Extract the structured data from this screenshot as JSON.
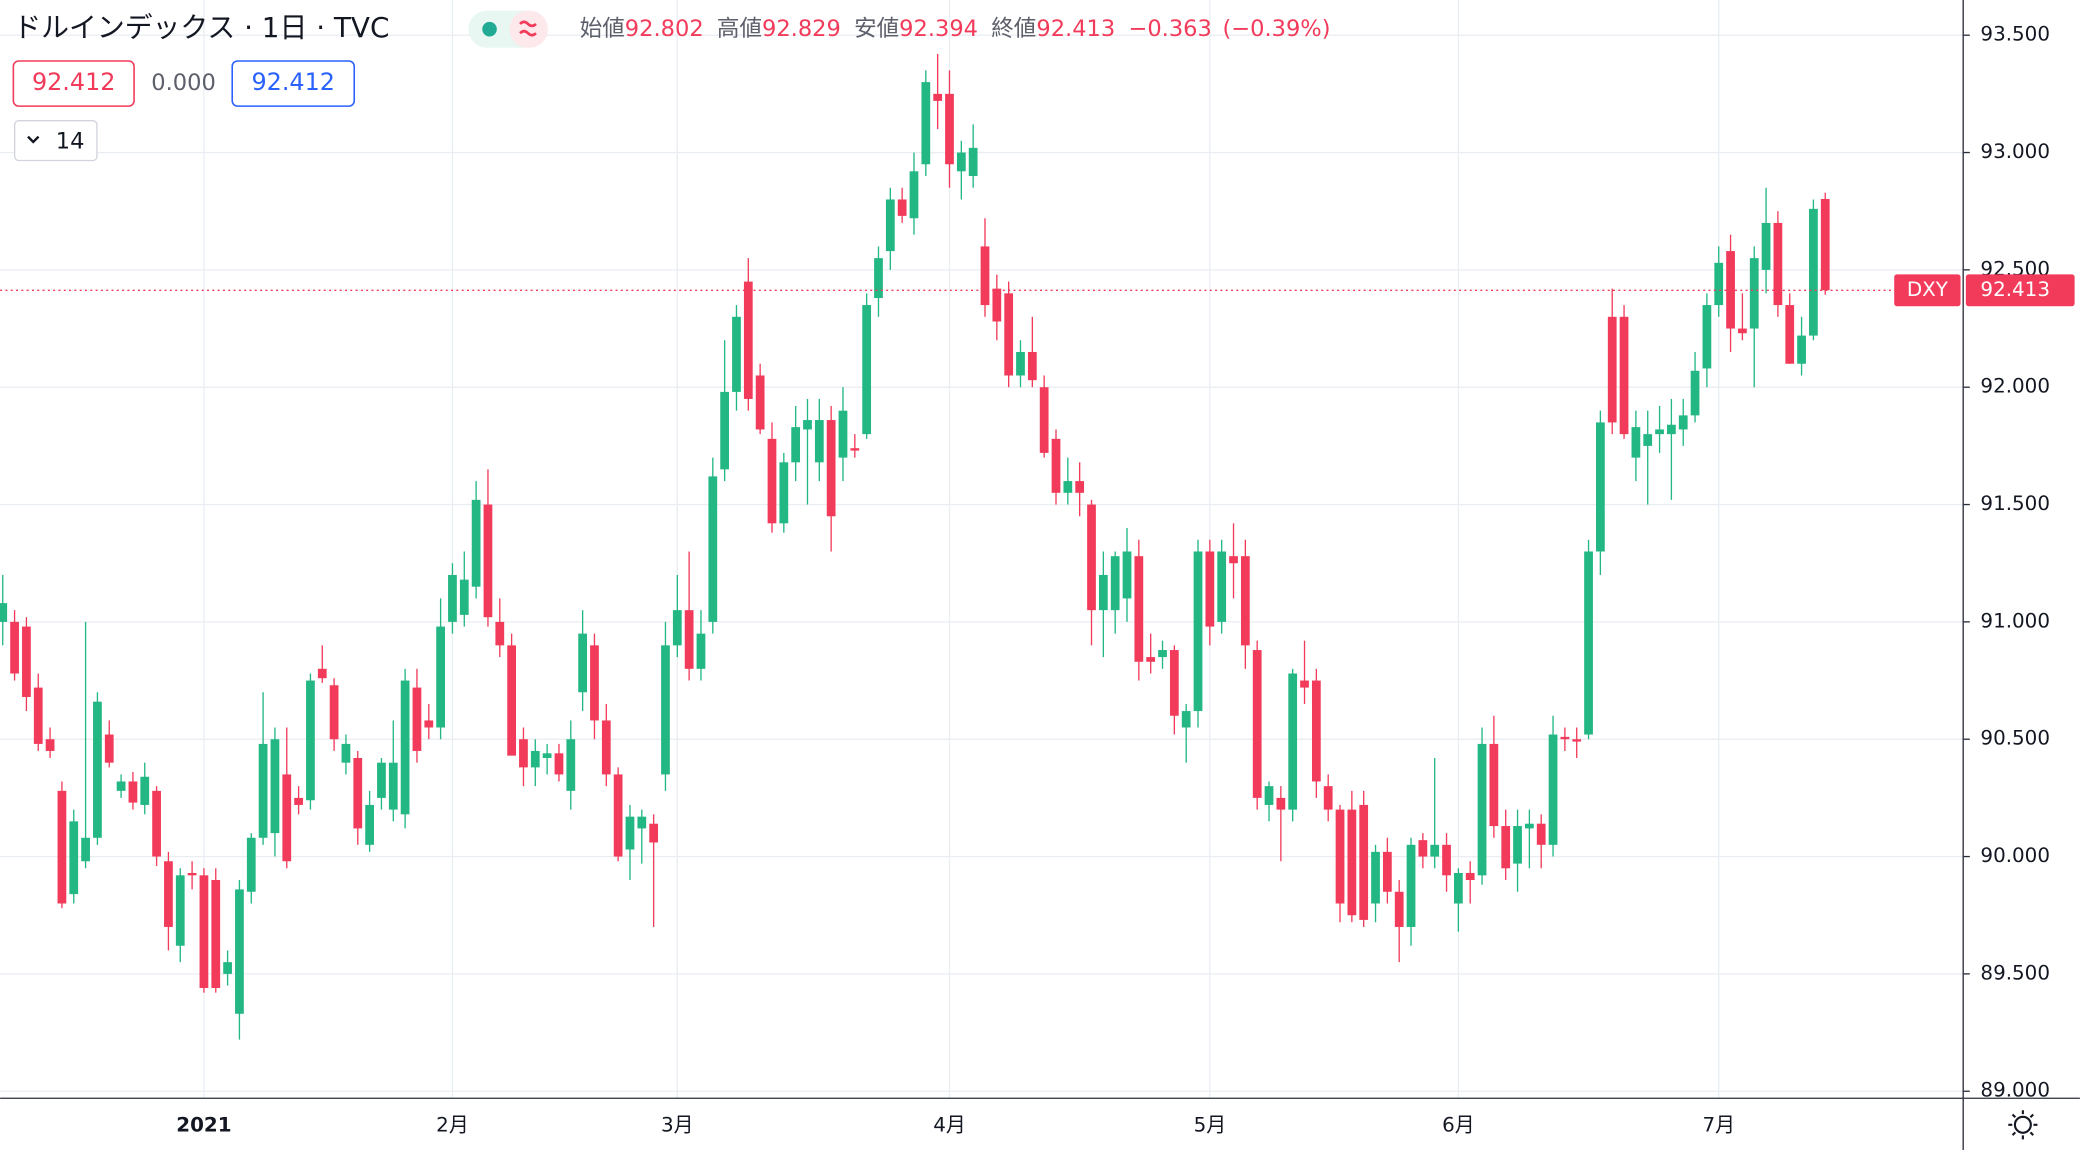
{
  "chart_data": {
    "type": "candlestick",
    "title": "ドルインデックス · 1日 · TVC",
    "ohlc_labels": [
      "始値",
      "高値",
      "安値",
      "終値"
    ],
    "change": "−0.363",
    "change_pct": "(−0.39%)",
    "indicator": {
      "values": [
        "92.412",
        "0.000",
        "92.412"
      ],
      "length": 14
    },
    "symbol": "DXY",
    "up_color": "#22b783",
    "down_color": "#f23b5a",
    "grid": true,
    "ylim": [
      88.97,
      93.65
    ],
    "yticks": [
      {
        "value": 89.0,
        "label": "89.000"
      },
      {
        "value": 89.5,
        "label": "89.500"
      },
      {
        "value": 90.0,
        "label": "90.000"
      },
      {
        "value": 90.5,
        "label": "90.500"
      },
      {
        "value": 91.0,
        "label": "91.000"
      },
      {
        "value": 91.5,
        "label": "91.500"
      },
      {
        "value": 92.0,
        "label": "92.000"
      },
      {
        "value": 92.5,
        "label": "92.500"
      },
      {
        "value": 93.0,
        "label": "93.000"
      },
      {
        "value": 93.5,
        "label": "93.500"
      }
    ],
    "categories": [
      null,
      null,
      null,
      null,
      null,
      null,
      null,
      null,
      null,
      null,
      null,
      null,
      null,
      null,
      null,
      null,
      null,
      "2021",
      null,
      null,
      null,
      null,
      null,
      null,
      null,
      null,
      null,
      null,
      null,
      null,
      null,
      null,
      null,
      null,
      null,
      null,
      null,
      null,
      "2月",
      null,
      null,
      null,
      null,
      null,
      null,
      null,
      null,
      null,
      null,
      null,
      null,
      null,
      null,
      null,
      null,
      null,
      null,
      "3月",
      null,
      null,
      null,
      null,
      null,
      null,
      null,
      null,
      null,
      null,
      null,
      null,
      null,
      null,
      null,
      null,
      null,
      null,
      null,
      null,
      null,
      null,
      "4月",
      null,
      null,
      null,
      null,
      null,
      null,
      null,
      null,
      null,
      null,
      null,
      null,
      null,
      null,
      null,
      null,
      null,
      null,
      null,
      null,
      null,
      "5月",
      null,
      null,
      null,
      null,
      null,
      null,
      null,
      null,
      null,
      null,
      null,
      null,
      null,
      null,
      null,
      null,
      null,
      null,
      null,
      null,
      "6月",
      null,
      null,
      null,
      null,
      null,
      null,
      null,
      null,
      null,
      null,
      null,
      null,
      null,
      null,
      null,
      null,
      null,
      null,
      null,
      null,
      null,
      "7月",
      null,
      null,
      null,
      null,
      null,
      null,
      null,
      null,
      null
    ],
    "ohlc": [
      [
        91.0,
        91.2,
        90.9,
        91.08
      ],
      [
        91.0,
        91.05,
        90.75,
        90.78
      ],
      [
        90.98,
        91.02,
        90.62,
        90.68
      ],
      [
        90.72,
        90.78,
        90.45,
        90.48
      ],
      [
        90.5,
        90.55,
        90.42,
        90.45
      ],
      [
        90.28,
        90.32,
        89.78,
        89.8
      ],
      [
        89.84,
        90.2,
        89.8,
        90.15
      ],
      [
        89.98,
        91.0,
        89.95,
        90.08
      ],
      [
        90.08,
        90.7,
        90.05,
        90.66
      ],
      [
        90.52,
        90.58,
        90.38,
        90.4
      ],
      [
        90.28,
        90.35,
        90.25,
        90.32
      ],
      [
        90.32,
        90.36,
        90.2,
        90.23
      ],
      [
        90.22,
        90.4,
        90.18,
        90.34
      ],
      [
        90.28,
        90.3,
        89.96,
        90.0
      ],
      [
        89.98,
        90.02,
        89.6,
        89.7
      ],
      [
        89.62,
        89.95,
        89.55,
        89.92
      ],
      [
        89.93,
        89.98,
        89.86,
        89.92
      ],
      [
        89.92,
        89.95,
        89.42,
        89.44
      ],
      [
        89.9,
        89.95,
        89.42,
        89.44
      ],
      [
        89.5,
        89.6,
        89.45,
        89.55
      ],
      [
        89.33,
        89.9,
        89.22,
        89.86
      ],
      [
        89.85,
        90.1,
        89.8,
        90.08
      ],
      [
        90.08,
        90.7,
        90.05,
        90.48
      ],
      [
        90.1,
        90.55,
        90.0,
        90.5
      ],
      [
        90.35,
        90.55,
        89.95,
        89.98
      ],
      [
        90.25,
        90.3,
        90.18,
        90.22
      ],
      [
        90.24,
        90.78,
        90.2,
        90.75
      ],
      [
        90.8,
        90.9,
        90.74,
        90.76
      ],
      [
        90.73,
        90.76,
        90.45,
        90.5
      ],
      [
        90.4,
        90.52,
        90.35,
        90.48
      ],
      [
        90.42,
        90.45,
        90.05,
        90.12
      ],
      [
        90.05,
        90.28,
        90.02,
        90.22
      ],
      [
        90.25,
        90.42,
        90.2,
        90.4
      ],
      [
        90.2,
        90.58,
        90.15,
        90.4
      ],
      [
        90.18,
        90.8,
        90.12,
        90.75
      ],
      [
        90.72,
        90.8,
        90.4,
        90.45
      ],
      [
        90.58,
        90.65,
        90.5,
        90.55
      ],
      [
        90.55,
        91.1,
        90.5,
        90.98
      ],
      [
        91.0,
        91.25,
        90.95,
        91.2
      ],
      [
        91.03,
        91.3,
        90.98,
        91.18
      ],
      [
        91.15,
        91.6,
        91.1,
        91.52
      ],
      [
        91.5,
        91.65,
        90.98,
        91.02
      ],
      [
        91.0,
        91.1,
        90.85,
        90.9
      ],
      [
        90.9,
        90.95,
        90.45,
        90.43
      ],
      [
        90.5,
        90.55,
        90.3,
        90.38
      ],
      [
        90.38,
        90.5,
        90.3,
        90.45
      ],
      [
        90.42,
        90.48,
        90.35,
        90.44
      ],
      [
        90.44,
        90.48,
        90.32,
        90.35
      ],
      [
        90.28,
        90.58,
        90.2,
        90.5
      ],
      [
        90.7,
        91.05,
        90.62,
        90.95
      ],
      [
        90.9,
        90.95,
        90.5,
        90.58
      ],
      [
        90.58,
        90.65,
        90.3,
        90.35
      ],
      [
        90.35,
        90.38,
        89.98,
        90.0
      ],
      [
        90.03,
        90.22,
        89.9,
        90.17
      ],
      [
        90.12,
        90.2,
        89.97,
        90.17
      ],
      [
        90.14,
        90.18,
        89.7,
        90.06
      ],
      [
        90.35,
        91.0,
        90.28,
        90.9
      ],
      [
        90.9,
        91.2,
        90.85,
        91.05
      ],
      [
        91.05,
        91.3,
        90.75,
        90.8
      ],
      [
        90.8,
        91.05,
        90.75,
        90.95
      ],
      [
        91.0,
        91.7,
        90.95,
        91.62
      ],
      [
        91.65,
        92.2,
        91.6,
        91.98
      ],
      [
        91.98,
        92.35,
        91.9,
        92.3
      ],
      [
        92.45,
        92.55,
        91.9,
        91.95
      ],
      [
        92.05,
        92.1,
        91.8,
        91.82
      ],
      [
        91.78,
        91.85,
        91.38,
        91.42
      ],
      [
        91.42,
        91.72,
        91.38,
        91.68
      ],
      [
        91.68,
        91.92,
        91.6,
        91.83
      ],
      [
        91.82,
        91.95,
        91.5,
        91.86
      ],
      [
        91.68,
        91.95,
        91.6,
        91.86
      ],
      [
        91.86,
        91.92,
        91.3,
        91.45
      ],
      [
        91.7,
        92.0,
        91.6,
        91.9
      ],
      [
        91.74,
        91.8,
        91.7,
        91.73
      ],
      [
        91.8,
        92.4,
        91.78,
        92.35
      ],
      [
        92.38,
        92.6,
        92.3,
        92.55
      ],
      [
        92.58,
        92.85,
        92.5,
        92.8
      ],
      [
        92.8,
        92.85,
        92.7,
        92.73
      ],
      [
        92.72,
        93.0,
        92.65,
        92.92
      ],
      [
        92.95,
        93.35,
        92.9,
        93.3
      ],
      [
        93.25,
        93.42,
        93.1,
        93.22
      ],
      [
        93.25,
        93.35,
        92.85,
        92.95
      ],
      [
        92.92,
        93.05,
        92.8,
        93.0
      ],
      [
        92.9,
        93.12,
        92.85,
        93.02
      ],
      [
        92.6,
        92.72,
        92.3,
        92.35
      ],
      [
        92.42,
        92.48,
        92.2,
        92.28
      ],
      [
        92.4,
        92.45,
        92.0,
        92.05
      ],
      [
        92.05,
        92.2,
        92.0,
        92.15
      ],
      [
        92.15,
        92.3,
        92.0,
        92.03
      ],
      [
        92.0,
        92.05,
        91.7,
        91.72
      ],
      [
        91.78,
        91.82,
        91.5,
        91.55
      ],
      [
        91.55,
        91.7,
        91.5,
        91.6
      ],
      [
        91.6,
        91.68,
        91.45,
        91.55
      ],
      [
        91.5,
        91.52,
        90.9,
        91.05
      ],
      [
        91.05,
        91.3,
        90.85,
        91.2
      ],
      [
        91.05,
        91.3,
        90.95,
        91.28
      ],
      [
        91.1,
        91.4,
        91.0,
        91.3
      ],
      [
        91.28,
        91.35,
        90.75,
        90.83
      ],
      [
        90.85,
        90.95,
        90.78,
        90.83
      ],
      [
        90.85,
        90.92,
        90.8,
        90.88
      ],
      [
        90.88,
        90.9,
        90.52,
        90.6
      ],
      [
        90.55,
        90.65,
        90.4,
        90.62
      ],
      [
        90.62,
        91.35,
        90.55,
        91.3
      ],
      [
        91.3,
        91.35,
        90.9,
        90.98
      ],
      [
        91.0,
        91.35,
        90.95,
        91.3
      ],
      [
        91.28,
        91.42,
        91.1,
        91.25
      ],
      [
        91.28,
        91.35,
        90.8,
        90.9
      ],
      [
        90.88,
        90.92,
        90.2,
        90.25
      ],
      [
        90.22,
        90.32,
        90.15,
        90.3
      ],
      [
        90.25,
        90.3,
        89.98,
        90.2
      ],
      [
        90.2,
        90.8,
        90.15,
        90.78
      ],
      [
        90.75,
        90.92,
        90.65,
        90.72
      ],
      [
        90.75,
        90.8,
        90.25,
        90.32
      ],
      [
        90.3,
        90.35,
        90.15,
        90.2
      ],
      [
        90.2,
        90.22,
        89.72,
        89.8
      ],
      [
        90.2,
        90.28,
        89.72,
        89.75
      ],
      [
        90.22,
        90.28,
        89.7,
        89.73
      ],
      [
        89.8,
        90.05,
        89.72,
        90.02
      ],
      [
        90.02,
        90.08,
        89.8,
        89.85
      ],
      [
        89.85,
        89.9,
        89.55,
        89.7
      ],
      [
        89.7,
        90.08,
        89.62,
        90.05
      ],
      [
        90.07,
        90.1,
        89.95,
        90.0
      ],
      [
        90.0,
        90.42,
        89.95,
        90.05
      ],
      [
        90.05,
        90.1,
        89.85,
        89.92
      ],
      [
        89.8,
        89.95,
        89.68,
        89.93
      ],
      [
        89.93,
        89.98,
        89.8,
        89.9
      ],
      [
        89.92,
        90.55,
        89.88,
        90.48
      ],
      [
        90.48,
        90.6,
        90.08,
        90.13
      ],
      [
        90.13,
        90.2,
        89.9,
        89.95
      ],
      [
        89.97,
        90.2,
        89.85,
        90.13
      ],
      [
        90.12,
        90.2,
        89.95,
        90.14
      ],
      [
        90.14,
        90.18,
        89.95,
        90.05
      ],
      [
        90.05,
        90.6,
        90.0,
        90.52
      ],
      [
        90.51,
        90.55,
        90.45,
        90.5
      ],
      [
        90.5,
        90.55,
        90.42,
        90.49
      ],
      [
        90.52,
        91.35,
        90.5,
        91.3
      ],
      [
        91.3,
        91.9,
        91.2,
        91.85
      ],
      [
        92.3,
        92.42,
        91.8,
        91.85
      ],
      [
        92.3,
        92.35,
        91.78,
        91.8
      ],
      [
        91.7,
        91.9,
        91.6,
        91.83
      ],
      [
        91.75,
        91.9,
        91.5,
        91.8
      ],
      [
        91.8,
        91.92,
        91.72,
        91.82
      ],
      [
        91.8,
        91.95,
        91.52,
        91.84
      ],
      [
        91.82,
        91.95,
        91.75,
        91.88
      ],
      [
        91.88,
        92.15,
        91.85,
        92.07
      ],
      [
        92.08,
        92.4,
        92.0,
        92.35
      ],
      [
        92.35,
        92.6,
        92.3,
        92.53
      ],
      [
        92.58,
        92.65,
        92.15,
        92.25
      ],
      [
        92.25,
        92.4,
        92.2,
        92.23
      ],
      [
        92.25,
        92.6,
        92.0,
        92.55
      ],
      [
        92.5,
        92.85,
        92.4,
        92.7
      ],
      [
        92.7,
        92.75,
        92.3,
        92.35
      ],
      [
        92.35,
        92.4,
        92.1,
        92.1
      ],
      [
        92.1,
        92.3,
        92.05,
        92.22
      ],
      [
        92.22,
        92.8,
        92.2,
        92.76
      ],
      [
        92.802,
        92.829,
        92.394,
        92.413
      ]
    ]
  }
}
